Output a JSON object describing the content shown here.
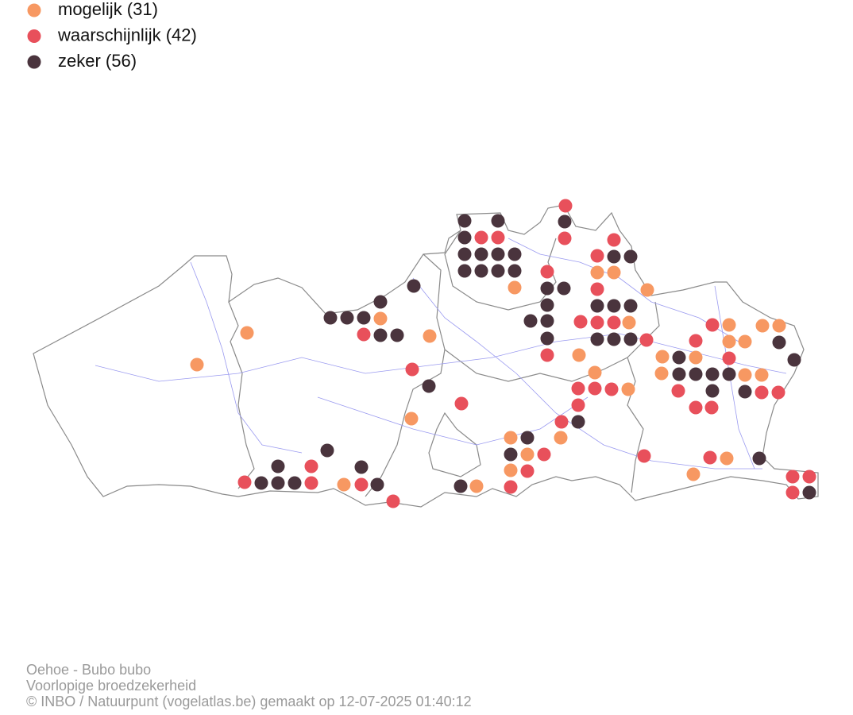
{
  "legend": {
    "items": [
      {
        "label": "mogelijk (31)",
        "color": "#f79862"
      },
      {
        "label": "waarschijnlijk (42)",
        "color": "#e8505b"
      },
      {
        "label": "zeker (56)",
        "color": "#4a343d"
      }
    ]
  },
  "footer": {
    "lines": [
      "Oehoe - Bubo bubo",
      "Voorlopige broedzekerheid",
      "© INBO / Natuurpunt (vogelatlas.be) gemaakt op 12-07-2025 01:40:12"
    ]
  }
}
